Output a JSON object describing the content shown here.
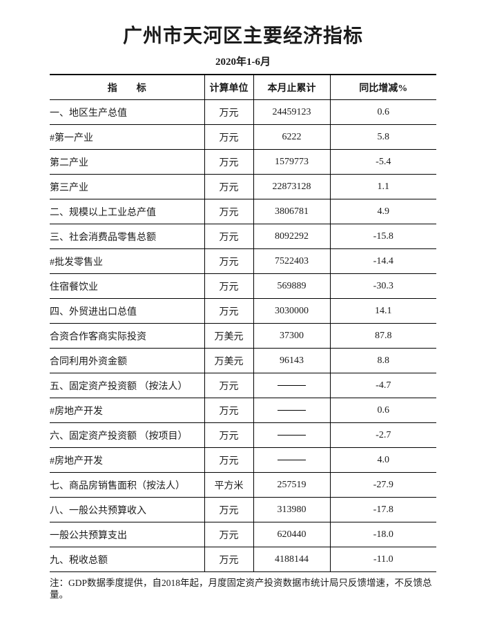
{
  "page": {
    "title": "广州市天河区主要经济指标",
    "subtitle": "2020年1-6月",
    "note": "注：GDP数据季度提供，自2018年起，月度固定资产投资数据市统计局只反馈增速，不反馈总量。"
  },
  "table": {
    "headers": [
      "指　　标",
      "计算单位",
      "本月止累计",
      "同比增减%"
    ],
    "em_dash": "——",
    "rows": [
      {
        "indicator": "一、地区生产总值",
        "indent": 0,
        "unit": "万元",
        "cumulative": "24459123",
        "yoy": "0.6"
      },
      {
        "indicator": "#第一产业",
        "indent": 1,
        "unit": "万元",
        "cumulative": "6222",
        "yoy": "5.8"
      },
      {
        "indicator": "第二产业",
        "indent": 2,
        "unit": "万元",
        "cumulative": "1579773",
        "yoy": "-5.4"
      },
      {
        "indicator": "第三产业",
        "indent": 2,
        "unit": "万元",
        "cumulative": "22873128",
        "yoy": "1.1"
      },
      {
        "indicator": "二、规模以上工业总产值",
        "indent": 0,
        "unit": "万元",
        "cumulative": "3806781",
        "yoy": "4.9"
      },
      {
        "indicator": "三、社会消费品零售总额",
        "indent": 0,
        "unit": "万元",
        "cumulative": "8092292",
        "yoy": "-15.8"
      },
      {
        "indicator": "#批发零售业",
        "indent": 1,
        "unit": "万元",
        "cumulative": "7522403",
        "yoy": "-14.4"
      },
      {
        "indicator": "住宿餐饮业",
        "indent": 2,
        "unit": "万元",
        "cumulative": "569889",
        "yoy": "-30.3"
      },
      {
        "indicator": "四、外贸进出口总值",
        "indent": 0,
        "unit": "万元",
        "cumulative": "3030000",
        "yoy": "14.1"
      },
      {
        "indicator": "合资合作客商实际投资",
        "indent": 3,
        "unit": "万美元",
        "cumulative": "37300",
        "yoy": "87.8"
      },
      {
        "indicator": "合同利用外资金额",
        "indent": 3,
        "unit": "万美元",
        "cumulative": "96143",
        "yoy": "8.8"
      },
      {
        "indicator": "五、固定资产投资额 （按法人）",
        "indent": 0,
        "unit": "万元",
        "cumulative": "——",
        "yoy": "-4.7"
      },
      {
        "indicator": "#房地产开发",
        "indent": 1,
        "unit": "万元",
        "cumulative": "——",
        "yoy": "0.6"
      },
      {
        "indicator": "六、固定资产投资额 （按项目）",
        "indent": 0,
        "unit": "万元",
        "cumulative": "——",
        "yoy": "-2.7"
      },
      {
        "indicator": "#房地产开发",
        "indent": 1,
        "unit": "万元",
        "cumulative": "——",
        "yoy": "4.0"
      },
      {
        "indicator": "七、商品房销售面积（按法人）",
        "indent": 0,
        "unit": "平方米",
        "cumulative": "257519",
        "yoy": "-27.9"
      },
      {
        "indicator": "八、一般公共预算收入",
        "indent": 0,
        "unit": "万元",
        "cumulative": "313980",
        "yoy": "-17.8"
      },
      {
        "indicator": "一般公共预算支出",
        "indent": 1,
        "unit": "万元",
        "cumulative": "620440",
        "yoy": "-18.0"
      },
      {
        "indicator": "九、税收总额",
        "indent": 0,
        "unit": "万元",
        "cumulative": "4188144",
        "yoy": "-11.0"
      }
    ]
  }
}
